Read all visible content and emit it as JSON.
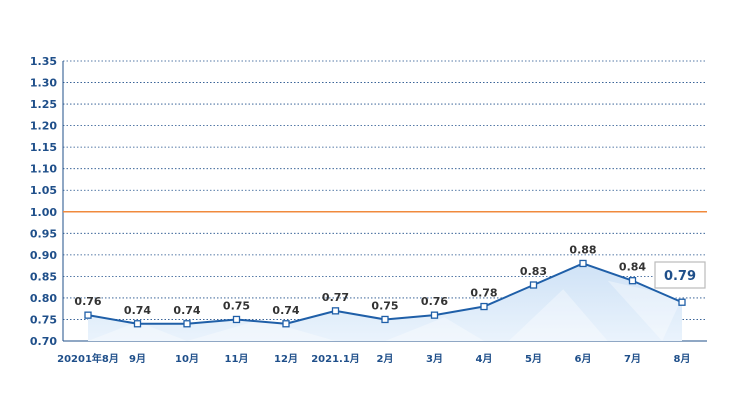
{
  "chart_data": {
    "type": "line",
    "categories": [
      "20201年8月",
      "9月",
      "10月",
      "11月",
      "12月",
      "2021.1月",
      "2月",
      "3月",
      "4月",
      "5月",
      "6月",
      "7月",
      "8月"
    ],
    "values": [
      0.76,
      0.74,
      0.74,
      0.75,
      0.74,
      0.77,
      0.75,
      0.76,
      0.78,
      0.83,
      0.88,
      0.84,
      0.79
    ],
    "data_labels": [
      "0.76",
      "0.74",
      "0.74",
      "0.75",
      "0.74",
      "0.77",
      "0.75",
      "0.76",
      "0.78",
      "0.83",
      "0.88",
      "0.84",
      "0.79"
    ],
    "yticks": [
      "0.70",
      "0.75",
      "0.80",
      "0.85",
      "0.90",
      "0.95",
      "1.00",
      "1.05",
      "1.10",
      "1.15",
      "1.20",
      "1.25",
      "1.30",
      "1.35"
    ],
    "ylim": [
      0.7,
      1.35
    ],
    "reference_line": 1.0,
    "highlight_last": "0.79",
    "title": "",
    "xlabel": "",
    "ylabel": "",
    "grid": true,
    "colors": {
      "line": "#1f5fa8",
      "area": "#d6e6f7",
      "grid": "#1f4f8a",
      "reference": "#f08a3c",
      "axis_text": "#1f4f8a",
      "callout_border": "#bbbbbb"
    }
  }
}
